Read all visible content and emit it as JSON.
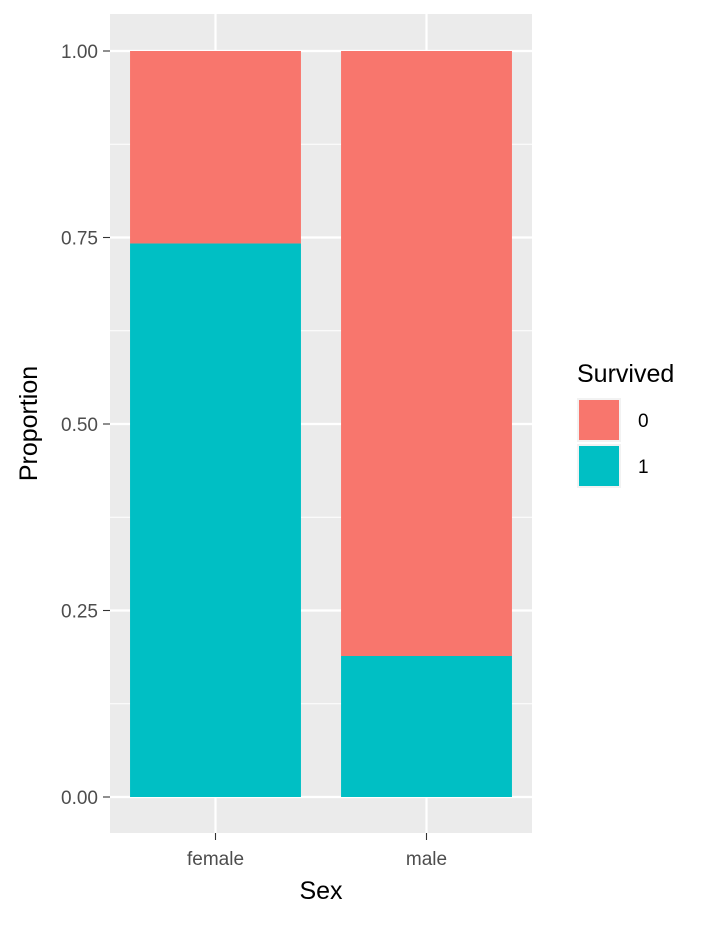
{
  "chart_data": {
    "type": "bar",
    "stacked": true,
    "position": "fill",
    "categories": [
      "female",
      "male"
    ],
    "series": [
      {
        "name": "0",
        "values": [
          0.258,
          0.811
        ],
        "color": "#F8766D"
      },
      {
        "name": "1",
        "values": [
          0.742,
          0.189
        ],
        "color": "#00BFC4"
      }
    ],
    "xlabel": "Sex",
    "ylabel": "Proportion",
    "ylim": [
      0,
      1
    ],
    "yticks": [
      0,
      0.25,
      0.5,
      0.75,
      1
    ],
    "ytick_labels": [
      "0.00",
      "0.25",
      "0.50",
      "0.75",
      "1.00"
    ],
    "grid": true,
    "legend": {
      "title": "Survived",
      "position": "right",
      "entries": [
        "0",
        "1"
      ]
    },
    "colors": {
      "panel_background": "#EBEBEB",
      "grid_line": "#FFFFFF"
    }
  }
}
